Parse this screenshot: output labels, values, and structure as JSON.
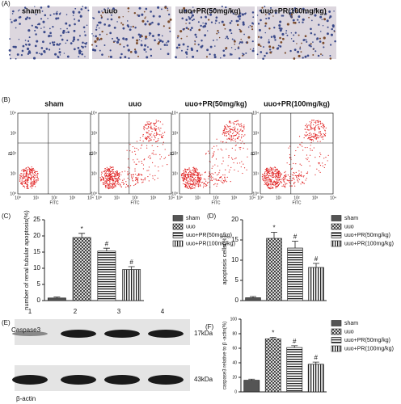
{
  "panels": {
    "A": {
      "label": "(A)",
      "titles": [
        "sham",
        "uuo",
        "uuo+PR(50mg/kg)",
        "uuo+PR(100mg/kg)"
      ]
    },
    "B": {
      "label": "(B)",
      "titles": [
        "sham",
        "uuo",
        "uuo+PR(50mg/kg)",
        "uuo+PR(100mg/kg)"
      ],
      "x_label": "FITC",
      "y_label": "PI",
      "ticks": [
        "10⁰",
        "10¹",
        "10²",
        "10³",
        "10⁴"
      ]
    },
    "E": {
      "label": "(E)",
      "lanes": [
        "1",
        "2",
        "3",
        "4"
      ],
      "bands": [
        {
          "name": "Caspase3",
          "size": "17kDa"
        },
        {
          "name": "β-actin",
          "size": "43kDa"
        }
      ]
    }
  },
  "chart_data": [
    {
      "type": "bar",
      "panel": "(C)",
      "y_label": "number of renal tubular apoptosis(%)",
      "categories": [
        "sham",
        "uuo",
        "uuo+PR(50mg/kg)",
        "uuo+PR(100mg/kg)"
      ],
      "values": [
        0.8,
        19.5,
        15.3,
        9.6
      ],
      "errors": [
        0.3,
        1.3,
        0.9,
        0.9
      ],
      "annotations": [
        null,
        "*",
        "#",
        "#"
      ],
      "ylim": [
        0,
        25
      ],
      "yticks": [
        0,
        5,
        10,
        15,
        20,
        25
      ]
    },
    {
      "type": "bar",
      "panel": "(D)",
      "y_label": "apoptosis cells(%)",
      "categories": [
        "sham",
        "uuo",
        "uuo+PR(50mg/kg)",
        "uuo+PR(100mg/kg)"
      ],
      "values": [
        0.7,
        15.4,
        13.0,
        8.2
      ],
      "errors": [
        0.3,
        1.5,
        1.7,
        1.0
      ],
      "annotations": [
        null,
        "*",
        "#",
        "#"
      ],
      "ylim": [
        0,
        20
      ],
      "yticks": [
        0,
        5,
        10,
        15,
        20
      ]
    },
    {
      "type": "bar",
      "panel": "(F)",
      "y_label": "caspase3 relative to β -actin(%)",
      "categories": [
        "sham",
        "uuo",
        "uuo+PR(50mg/kg)",
        "uuo+PR(100mg/kg)"
      ],
      "values": [
        16,
        73,
        61,
        38
      ],
      "errors": [
        1.5,
        2,
        2.5,
        3
      ],
      "annotations": [
        null,
        "*",
        "#",
        "#"
      ],
      "ylim": [
        0,
        100
      ],
      "yticks": [
        0,
        20,
        40,
        60,
        80,
        100
      ]
    }
  ]
}
